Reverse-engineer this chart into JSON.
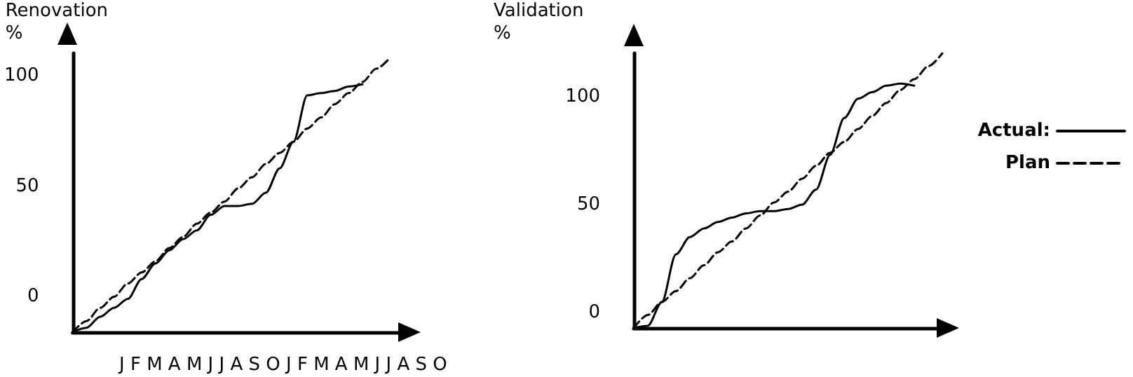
{
  "chart_data": [
    {
      "type": "line",
      "ylabel": "Renovation\n%",
      "categories": [
        null,
        null,
        null,
        null,
        null,
        null,
        null,
        null,
        null,
        null,
        null,
        null,
        null,
        null,
        null,
        null,
        null,
        null,
        null,
        null,
        null,
        null,
        null,
        null,
        null
      ],
      "series": [
        {
          "color": "#000000",
          "line_style": "solid",
          "values": [
            -16,
            -14,
            -9,
            -5,
            -1,
            8,
            15,
            21,
            26,
            30,
            37,
            41,
            41,
            42,
            47,
            58,
            70,
            91,
            92,
            93,
            95,
            96,
            null,
            null,
            null
          ]
        },
        {
          "color": "#000000",
          "line_style": "dashed",
          "values": [
            -16,
            -11,
            -5,
            0,
            6,
            11,
            16,
            22,
            27,
            33,
            38,
            43,
            49,
            54,
            60,
            65,
            70,
            76,
            81,
            87,
            92,
            97,
            103,
            108,
            null
          ]
        }
      ],
      "ylim": [
        -16,
        110
      ],
      "yticks": [
        0,
        50,
        100
      ],
      "tick_labels": "y",
      "grid": false,
      "legend": false,
      "marker": "none",
      "annotations": [
        "J F M A M J J A S O J F M A M J J A S O"
      ]
    },
    {
      "type": "line",
      "ylabel": "Validation\n%",
      "categories": [
        null,
        null,
        null,
        null,
        null,
        null,
        null,
        null,
        null,
        null,
        null,
        null,
        null,
        null,
        null,
        null,
        null,
        null,
        null,
        null,
        null,
        null,
        null
      ],
      "series": [
        {
          "name": "Actual:",
          "color": "#000000",
          "line_style": "solid",
          "values": [
            -7,
            -6,
            5,
            27,
            35,
            39,
            42,
            44,
            46,
            47,
            47,
            48,
            50,
            57,
            73,
            90,
            99,
            102,
            105,
            106,
            105,
            null,
            null
          ]
        },
        {
          "name": "Plan",
          "color": "#000000",
          "line_style": "dashed",
          "values": [
            -7,
            -1,
            5,
            10,
            16,
            22,
            28,
            33,
            39,
            45,
            51,
            56,
            62,
            68,
            74,
            79,
            85,
            91,
            97,
            103,
            108,
            114,
            120
          ]
        }
      ],
      "ylim": [
        -7,
        120
      ],
      "yticks": [
        0,
        50,
        100
      ],
      "tick_labels": "y",
      "grid": false,
      "legend": "right",
      "marker": "none"
    }
  ]
}
